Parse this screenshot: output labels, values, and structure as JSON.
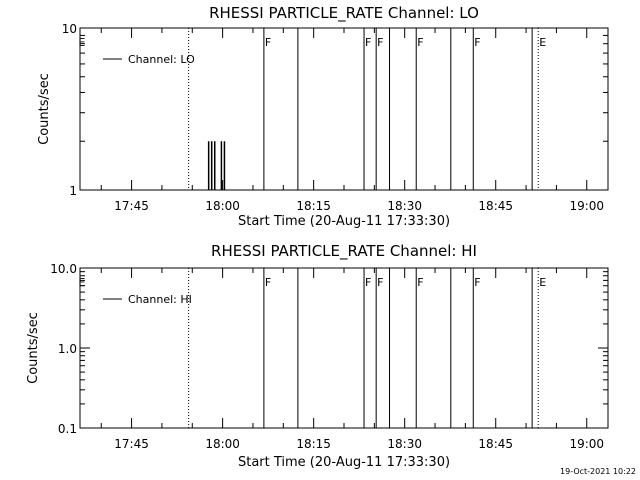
{
  "chart_data": [
    {
      "type": "line",
      "title": "RHESSI PARTICLE_RATE Channel: LO",
      "xlabel": "Start Time (20-Aug-11 17:33:30)",
      "ylabel": "Counts/sec",
      "y_scale": "log",
      "ylim": [
        1,
        10
      ],
      "yticks": [
        1,
        10
      ],
      "ytick_labels": [
        "1",
        "10"
      ],
      "x_range_minutes": [
        -23.5,
        63.5
      ],
      "xticks": [
        -15,
        0,
        15,
        30,
        45,
        60
      ],
      "xtick_labels": [
        "17:45",
        "18:00",
        "18:15",
        "18:30",
        "18:45",
        "19:00"
      ],
      "legend": {
        "position": "top-left",
        "entries": [
          "Channel: LO"
        ]
      },
      "series": [
        {
          "name": "Channel: LO",
          "color": "#000000",
          "spikes": [
            {
              "x": -2.3,
              "y": 2
            },
            {
              "x": -1.8,
              "y": 2
            },
            {
              "x": -1.3,
              "y": 2
            },
            {
              "x": -0.2,
              "y": 2
            },
            {
              "x": 0.3,
              "y": 2
            }
          ]
        }
      ],
      "flags": [
        {
          "x": -23.2,
          "label": "E",
          "style": "none"
        },
        {
          "x": -5.6,
          "label": "",
          "style": "dotted"
        },
        {
          "x": 6.8,
          "label": "F",
          "style": "solid"
        },
        {
          "x": 12.4,
          "label": "",
          "style": "solid"
        },
        {
          "x": 23.3,
          "label": "F",
          "style": "solid"
        },
        {
          "x": 25.3,
          "label": "F",
          "style": "solid"
        },
        {
          "x": 27.5,
          "label": "",
          "style": "solid"
        },
        {
          "x": 31.9,
          "label": "F",
          "style": "solid"
        },
        {
          "x": 37.6,
          "label": "",
          "style": "solid"
        },
        {
          "x": 41.3,
          "label": "F",
          "style": "solid"
        },
        {
          "x": 51.0,
          "label": "",
          "style": "solid"
        },
        {
          "x": 52.0,
          "label": "E",
          "style": "dotted"
        },
        {
          "x": 69.5,
          "label": "",
          "style": "dotted"
        }
      ]
    },
    {
      "type": "line",
      "title": "RHESSI PARTICLE_RATE Channel: HI",
      "xlabel": "Start Time (20-Aug-11 17:33:30)",
      "ylabel": "Counts/sec",
      "y_scale": "log",
      "ylim": [
        0.1,
        10
      ],
      "yticks": [
        0.1,
        1,
        10
      ],
      "ytick_labels": [
        "0.1",
        "1.0",
        "10.0"
      ],
      "x_range_minutes": [
        -23.5,
        63.5
      ],
      "xticks": [
        -15,
        0,
        15,
        30,
        45,
        60
      ],
      "xtick_labels": [
        "17:45",
        "18:00",
        "18:15",
        "18:30",
        "18:45",
        "19:00"
      ],
      "legend": {
        "position": "top-left",
        "entries": [
          "Channel: HI"
        ]
      },
      "series": [
        {
          "name": "Channel: HI",
          "color": "#000000",
          "spikes": []
        }
      ],
      "flags": [
        {
          "x": -23.2,
          "label": "E",
          "style": "none"
        },
        {
          "x": -5.6,
          "label": "",
          "style": "dotted"
        },
        {
          "x": 6.8,
          "label": "F",
          "style": "solid"
        },
        {
          "x": 12.4,
          "label": "",
          "style": "solid"
        },
        {
          "x": 23.3,
          "label": "F",
          "style": "solid"
        },
        {
          "x": 25.3,
          "label": "F",
          "style": "solid"
        },
        {
          "x": 27.5,
          "label": "",
          "style": "solid"
        },
        {
          "x": 31.9,
          "label": "F",
          "style": "solid"
        },
        {
          "x": 37.6,
          "label": "",
          "style": "solid"
        },
        {
          "x": 41.3,
          "label": "F",
          "style": "solid"
        },
        {
          "x": 51.0,
          "label": "",
          "style": "solid"
        },
        {
          "x": 52.0,
          "label": "E",
          "style": "dotted"
        },
        {
          "x": 69.5,
          "label": "",
          "style": "dotted"
        }
      ]
    }
  ],
  "footer": {
    "timestamp": "19-Oct-2021 10:22"
  }
}
